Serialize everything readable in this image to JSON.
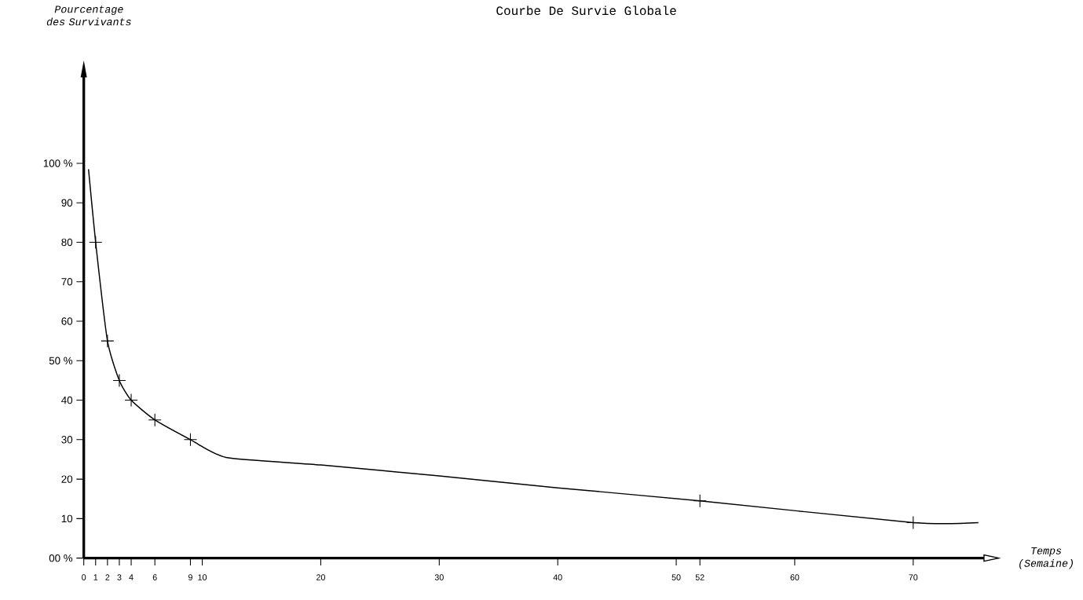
{
  "chart_data": {
    "type": "line",
    "title": "Courbe De Survie Globale",
    "xlabel": "Temps (Semaine)",
    "ylabel": "Pourcentage des Survivants",
    "series": [
      {
        "color": "#000000",
        "marker": "none",
        "x": [
          0.4,
          1,
          2,
          3,
          4,
          6,
          9,
          12,
          20,
          30,
          40,
          52,
          70,
          75.5
        ],
        "values": [
          98.5,
          80,
          55,
          45,
          40,
          35,
          30,
          25.5,
          23.6,
          20.8,
          17.8,
          14.5,
          9,
          9
        ]
      },
      {
        "type": "scatter",
        "color": "#000000",
        "marker": "cross",
        "x": [
          1,
          2,
          3,
          4,
          6,
          9,
          52,
          70
        ],
        "values": [
          80,
          55,
          45,
          40,
          35,
          30,
          14.5,
          9
        ]
      }
    ],
    "xlim": [
      0,
      76
    ],
    "ylim": [
      0,
      122
    ],
    "xticks": [
      0,
      1,
      2,
      3,
      4,
      6,
      9,
      10,
      20,
      30,
      40,
      50,
      52,
      60,
      70
    ],
    "yticks": [
      {
        "value": 0,
        "label": "00 %"
      },
      10,
      20,
      30,
      40,
      {
        "value": 50,
        "label": "50 %"
      },
      60,
      70,
      80,
      90,
      {
        "value": 100,
        "label": "100 %"
      }
    ],
    "grid": false
  }
}
